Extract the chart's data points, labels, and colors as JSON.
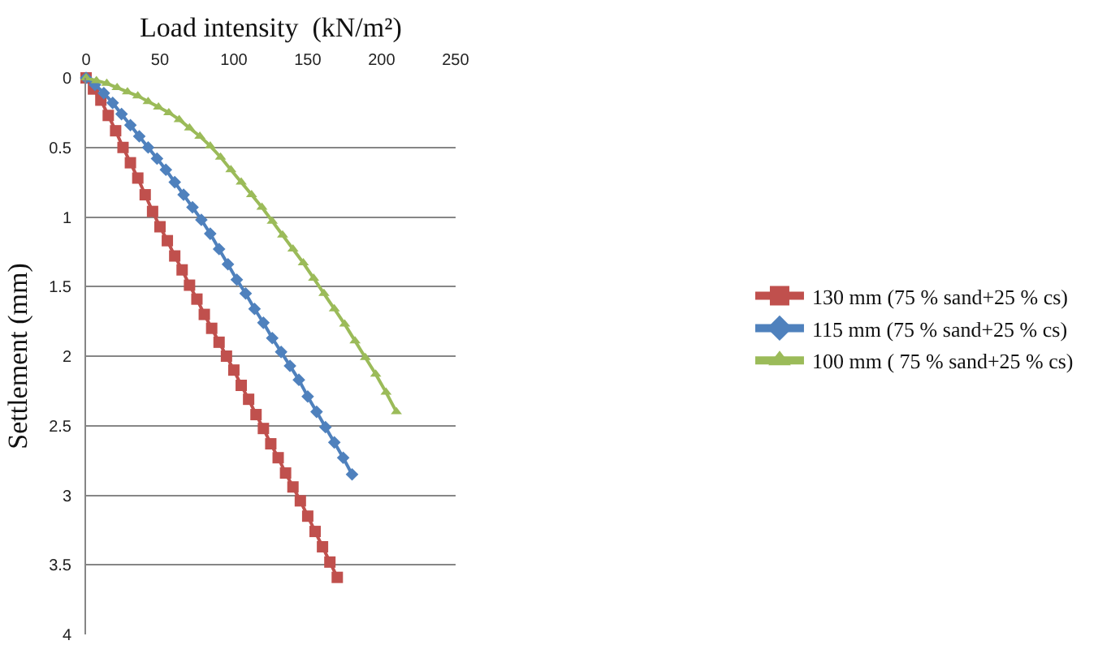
{
  "chart_data": {
    "type": "line",
    "xlabel": "Load intensity  (kN/m²)",
    "ylabel": "Settlement (mm)",
    "xlim": [
      0,
      250
    ],
    "xticks": [
      0,
      50,
      100,
      150,
      200,
      250
    ],
    "ylim": [
      4,
      0
    ],
    "yticks": [
      0,
      0.5,
      1,
      1.5,
      2,
      2.5,
      3,
      3.5,
      4
    ],
    "grid": "y",
    "legend": "right",
    "line_style": "solid",
    "series": [
      {
        "name": "130 mm (75 % sand+25 % cs)",
        "color": "#c0504d",
        "marker": "square",
        "x": [
          0,
          5,
          10,
          15,
          20,
          25,
          30,
          35,
          40,
          45,
          50,
          55,
          60,
          65,
          70,
          75,
          80,
          85,
          90,
          95,
          100,
          105,
          110,
          115,
          120,
          125,
          130,
          135,
          140,
          145,
          150,
          155,
          160,
          165,
          170
        ],
        "values": [
          0,
          0.08,
          0.16,
          0.27,
          0.38,
          0.5,
          0.61,
          0.72,
          0.84,
          0.96,
          1.07,
          1.17,
          1.28,
          1.38,
          1.49,
          1.59,
          1.7,
          1.8,
          1.9,
          2.0,
          2.1,
          2.21,
          2.31,
          2.42,
          2.52,
          2.63,
          2.73,
          2.84,
          2.94,
          3.04,
          3.15,
          3.26,
          3.37,
          3.48,
          3.59
        ]
      },
      {
        "name": "115 mm (75 % sand+25 % cs)",
        "color": "#4f81bd",
        "marker": "diamond",
        "x": [
          0,
          6,
          12,
          18,
          24,
          30,
          36,
          42,
          48,
          54,
          60,
          66,
          72,
          78,
          84,
          90,
          96,
          102,
          108,
          114,
          120,
          126,
          132,
          138,
          144,
          150,
          156,
          162,
          168,
          174,
          180
        ],
        "values": [
          0,
          0.05,
          0.11,
          0.18,
          0.26,
          0.34,
          0.42,
          0.5,
          0.58,
          0.66,
          0.75,
          0.84,
          0.93,
          1.02,
          1.12,
          1.23,
          1.34,
          1.45,
          1.55,
          1.66,
          1.76,
          1.87,
          1.97,
          2.07,
          2.17,
          2.29,
          2.4,
          2.51,
          2.62,
          2.73,
          2.85
        ]
      },
      {
        "name": "100 mm ( 75 % sand+25 % cs)",
        "color": "#9bbb59",
        "marker": "triangle",
        "x": [
          0,
          7,
          14,
          21,
          28,
          35,
          42,
          49,
          56,
          63,
          70,
          77,
          84,
          91,
          98,
          105,
          112,
          119,
          126,
          133,
          140,
          147,
          154,
          161,
          168,
          175,
          182,
          189,
          196,
          203,
          210
        ],
        "values": [
          0,
          0.02,
          0.04,
          0.07,
          0.1,
          0.13,
          0.17,
          0.21,
          0.25,
          0.3,
          0.36,
          0.42,
          0.49,
          0.57,
          0.66,
          0.75,
          0.84,
          0.93,
          1.03,
          1.13,
          1.23,
          1.33,
          1.44,
          1.55,
          1.66,
          1.77,
          1.89,
          2.01,
          2.13,
          2.26,
          2.4
        ]
      }
    ]
  }
}
